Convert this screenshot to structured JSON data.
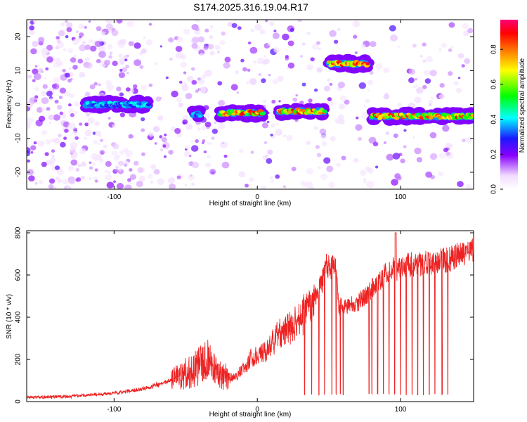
{
  "title": "S174.2025.316.19.04.R17",
  "colors": {
    "snr_line": "#ee2222",
    "frame": "#000000"
  },
  "chart_data": [
    {
      "type": "heatmap",
      "xlabel": "Height of straight line (km)",
      "ylabel": "Frequency (Hz)",
      "xlim": [
        -161,
        151
      ],
      "ylim": [
        -25,
        25
      ],
      "x_ticks": [
        -100,
        0,
        100
      ],
      "y_ticks": [
        -20,
        -10,
        0,
        10,
        20
      ],
      "colorbar": {
        "label": "Normalized spectral amplitude",
        "range": [
          0,
          0.97
        ],
        "ticks": [
          "0.0",
          "0.2",
          "0.4",
          "0.6",
          "0.8"
        ],
        "tick_values": [
          0,
          0.2,
          0.4,
          0.6,
          0.8
        ]
      },
      "ridge_segments": [
        {
          "x_start": -120,
          "x_end": -76,
          "freq": 0,
          "peak_amplitude": 0.45
        },
        {
          "x_start": -45,
          "x_end": -40,
          "freq": -3,
          "peak_amplitude": 0.4
        },
        {
          "x_start": -26,
          "x_end": 4,
          "freq": -2.5,
          "peak_amplitude": 0.9
        },
        {
          "x_start": 15,
          "x_end": 47,
          "freq": -2,
          "peak_amplitude": 0.92
        },
        {
          "x_start": 50,
          "x_end": 77,
          "freq": 12,
          "peak_amplitude": 0.95
        },
        {
          "x_start": 80,
          "x_end": 151,
          "freq": -3.5,
          "peak_amplitude": 0.9
        }
      ]
    },
    {
      "type": "line",
      "xlabel": "Height of straight line (km)",
      "ylabel": "SNR (10 * v/v)",
      "xlim": [
        -161,
        151
      ],
      "ylim": [
        0,
        810
      ],
      "x_ticks": [
        -100,
        0,
        100
      ],
      "y_ticks": [
        0,
        200,
        400,
        600,
        800
      ],
      "trend": {
        "x": [
          -161,
          -130,
          -100,
          -80,
          -60,
          -45,
          -35,
          -25,
          -15,
          -5,
          5,
          15,
          25,
          35,
          45,
          48,
          55,
          57,
          62,
          70,
          78,
          85,
          95,
          105,
          115,
          125,
          135,
          145,
          151
        ],
        "y": [
          20,
          25,
          40,
          60,
          100,
          150,
          200,
          120,
          110,
          200,
          230,
          320,
          360,
          430,
          560,
          640,
          640,
          450,
          450,
          470,
          510,
          580,
          630,
          650,
          650,
          660,
          680,
          700,
          720
        ]
      },
      "dropouts_x": [
        33,
        38,
        43,
        47,
        52,
        55,
        58,
        60,
        78,
        80,
        84,
        88,
        92,
        96,
        100,
        104,
        108,
        112,
        116,
        120,
        124,
        129,
        133
      ]
    }
  ]
}
